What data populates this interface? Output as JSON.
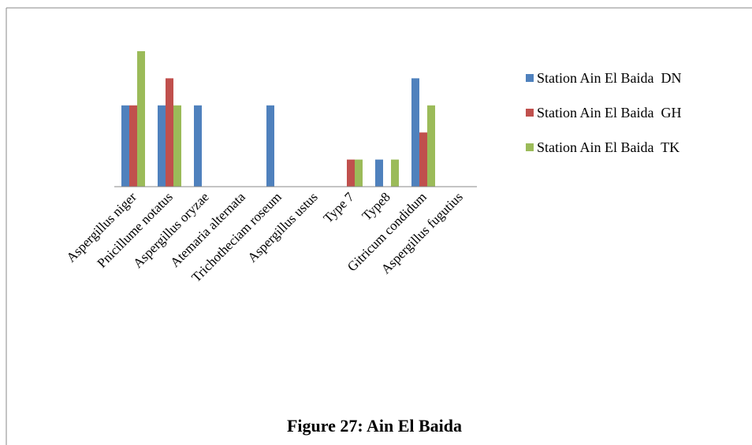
{
  "chart_data": {
    "type": "bar",
    "title": "Figure 27: Ain El Baida",
    "categories": [
      "Aspergillus niger",
      "Pnicillume notatus",
      "Aspergillus oryzae",
      "Atemaria alternata",
      "Trichotheciam roseum",
      "Aspergillus ustus",
      "Type 7",
      "Type8",
      "Gitricum condidum",
      "Aspergillus fugutius"
    ],
    "series": [
      {
        "name": "Station Ain El Baida  DN",
        "color": "#4f81bd",
        "values": [
          3,
          3,
          3,
          0,
          3,
          0,
          0,
          1,
          4,
          0
        ]
      },
      {
        "name": "Station Ain El Baida  GH",
        "color": "#c0504d",
        "values": [
          3,
          4,
          0,
          0,
          0,
          0,
          1,
          0,
          2,
          0
        ]
      },
      {
        "name": "Station Ain El Baida  TK",
        "color": "#9bbb59",
        "values": [
          5,
          3,
          0,
          0,
          0,
          0,
          1,
          1,
          3,
          0
        ]
      }
    ],
    "ylim": [
      0,
      5
    ],
    "legend": "right"
  }
}
